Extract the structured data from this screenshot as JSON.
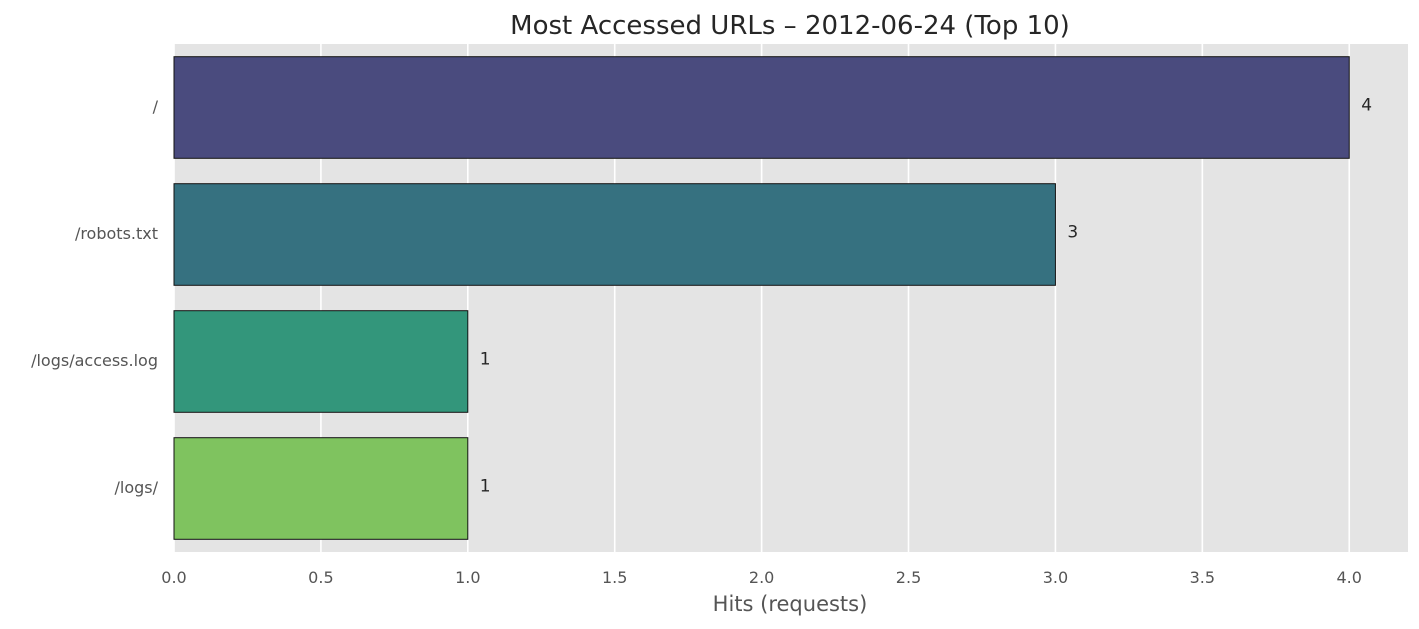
{
  "chart_data": {
    "type": "bar",
    "orientation": "horizontal",
    "title": "Most Accessed URLs – 2012-06-24 (Top 10)",
    "xlabel": "Hits (requests)",
    "ylabel": "",
    "categories": [
      "/",
      "/robots.txt",
      "/logs/access.log",
      "/logs/"
    ],
    "values": [
      4,
      3,
      1,
      1
    ],
    "data_labels": [
      "4",
      "3",
      "1",
      "1"
    ],
    "bar_colors": [
      "#4a4b7e",
      "#367180",
      "#33967b",
      "#7fc35f"
    ],
    "xlim": [
      0,
      4.2
    ],
    "x_ticks": [
      0.0,
      0.5,
      1.0,
      1.5,
      2.0,
      2.5,
      3.0,
      3.5,
      4.0
    ],
    "x_tick_labels": [
      "0.0",
      "0.5",
      "1.0",
      "1.5",
      "2.0",
      "2.5",
      "3.0",
      "3.5",
      "4.0"
    ],
    "grid": true,
    "background_color": "#e4e4e4",
    "grid_color": "#ffffff"
  }
}
